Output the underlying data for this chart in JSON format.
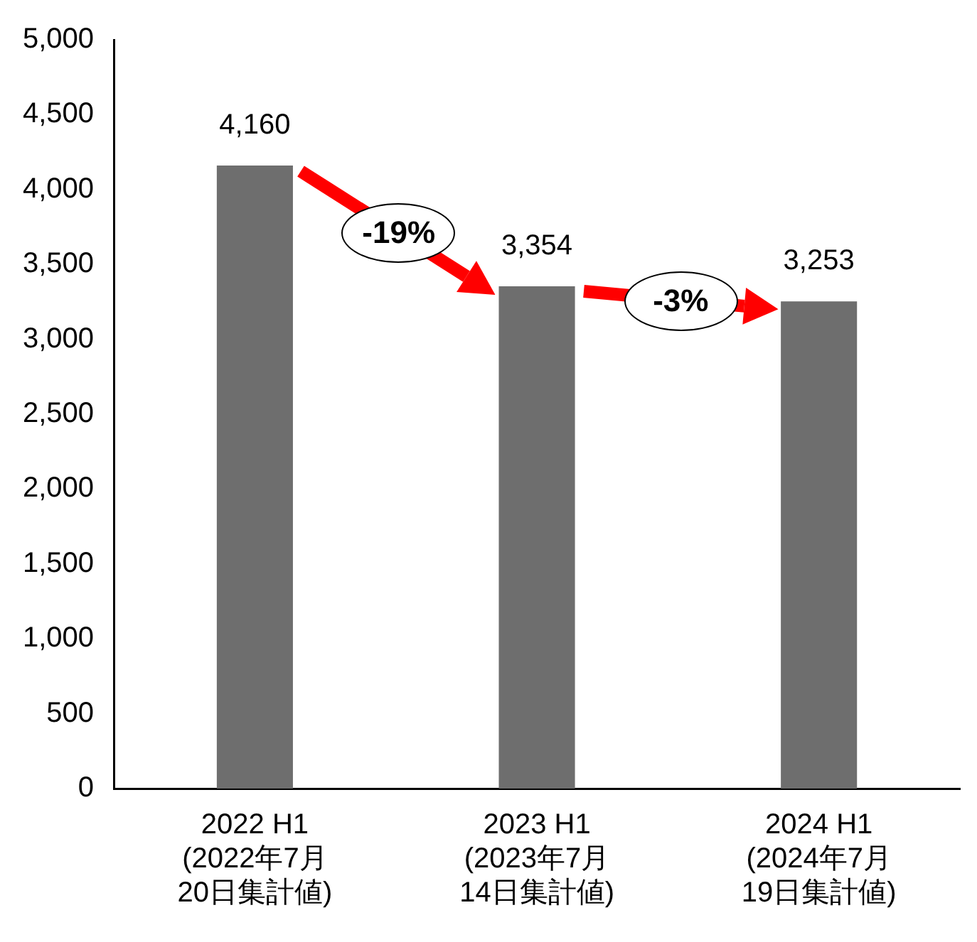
{
  "chart_data": {
    "type": "bar",
    "categories": [
      "2022 H1\n(2022年7月\n20日集計値)",
      "2023 H1\n(2023年7月\n14日集計値)",
      "2024 H1\n(2024年7月\n19日集計値)"
    ],
    "values": [
      4160,
      3354,
      3253
    ],
    "value_labels": [
      "4,160",
      "3,354",
      "3,253"
    ],
    "color": "#6e6e6e",
    "ylim": [
      0,
      5000
    ],
    "yticks": [
      {
        "value": 0,
        "label": "0"
      },
      {
        "value": 500,
        "label": "500"
      },
      {
        "value": 1000,
        "label": "1,000"
      },
      {
        "value": 1500,
        "label": "1,500"
      },
      {
        "value": 2000,
        "label": "2,000"
      },
      {
        "value": 2500,
        "label": "2,500"
      },
      {
        "value": 3000,
        "label": "3,000"
      },
      {
        "value": 3500,
        "label": "3,500"
      },
      {
        "value": 4000,
        "label": "4,000"
      },
      {
        "value": 4500,
        "label": "4,500"
      },
      {
        "value": 5000,
        "label": "5,000"
      }
    ],
    "grid": false,
    "legend": false,
    "annotations": [
      "-19%",
      "-3%"
    ]
  }
}
